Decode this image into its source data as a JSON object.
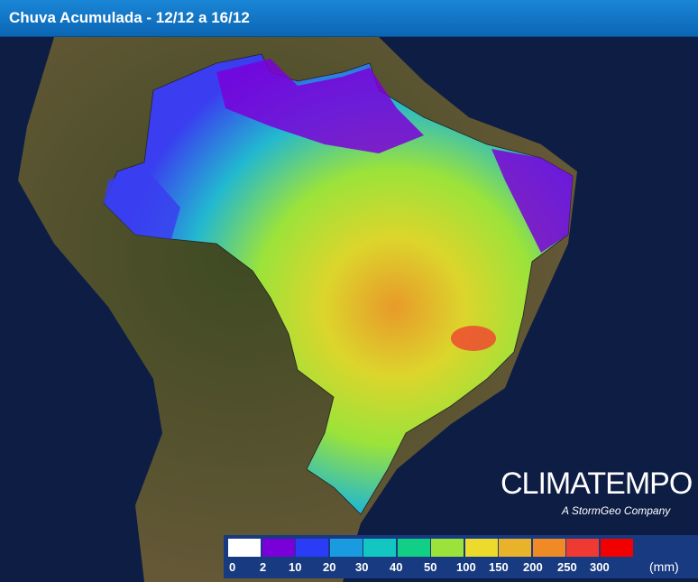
{
  "header": {
    "title": "Chuva Acumulada - 12/12 a 16/12"
  },
  "logo": {
    "name": "CLIMATEMPO",
    "tagline": "A StormGeo Company"
  },
  "legend": {
    "unit": "(mm)",
    "labels": [
      "0",
      "2",
      "10",
      "20",
      "30",
      "40",
      "50",
      "100",
      "150",
      "200",
      "250",
      "300"
    ],
    "colors": [
      "#ffffff",
      "#7a00d9",
      "#2a3cf5",
      "#1a9be0",
      "#12c7c2",
      "#12cf86",
      "#9be33a",
      "#ecdb2c",
      "#e8b22a",
      "#ef8a26",
      "#ef3a34",
      "#f20000"
    ]
  }
}
